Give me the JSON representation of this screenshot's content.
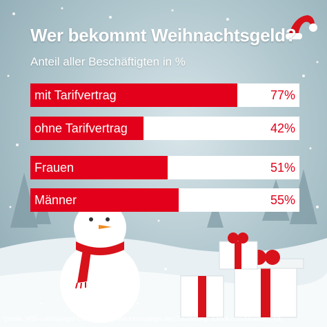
{
  "header": {
    "title": "Wer bekommt Weihnachtsgeld?",
    "subtitle": "Anteil aller Beschäftigten in %"
  },
  "footer": {
    "source": "Quelle: WSI-Lohnspiegel-Datenbank (www.lohnspiegel.de); Zeichnung: iStock.com/Makkuro_GL"
  },
  "colors": {
    "bar": "#e2001a",
    "track": "#ffffff",
    "background": "#b3c9d0"
  },
  "chart_data": {
    "type": "bar",
    "orientation": "horizontal",
    "title": "Wer bekommt Weihnachtsgeld?",
    "subtitle": "Anteil aller Beschäftigten in %",
    "categories": [
      "mit Tarifvertrag",
      "ohne Tarifvertrag",
      "Frauen",
      "Männer"
    ],
    "values": [
      77,
      42,
      51,
      55
    ],
    "value_labels": [
      "77%",
      "42%",
      "51%",
      "55%"
    ],
    "xlim": [
      0,
      100
    ],
    "grid": false
  }
}
